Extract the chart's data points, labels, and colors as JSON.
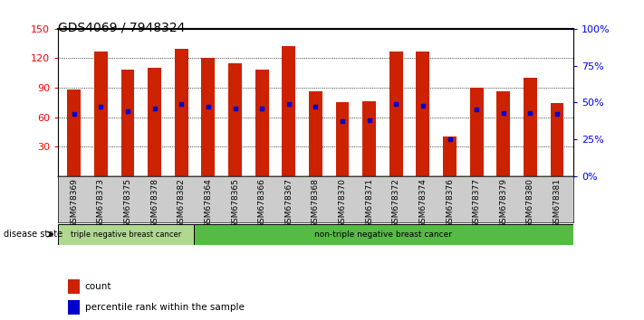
{
  "title": "GDS4069 / 7948324",
  "samples": [
    "GSM678369",
    "GSM678373",
    "GSM678375",
    "GSM678378",
    "GSM678382",
    "GSM678364",
    "GSM678365",
    "GSM678366",
    "GSM678367",
    "GSM678368",
    "GSM678370",
    "GSM678371",
    "GSM678372",
    "GSM678374",
    "GSM678376",
    "GSM678377",
    "GSM678379",
    "GSM678380",
    "GSM678381"
  ],
  "counts": [
    88,
    127,
    108,
    110,
    130,
    120,
    115,
    108,
    132,
    86,
    75,
    76,
    127,
    127,
    40,
    90,
    86,
    100,
    74
  ],
  "percentiles": [
    42,
    47,
    44,
    46,
    49,
    47,
    46,
    46,
    49,
    47,
    37,
    38,
    49,
    48,
    25,
    45,
    43,
    43,
    42
  ],
  "group1_count": 5,
  "group1_label": "triple negative breast cancer",
  "group2_label": "non-triple negative breast cancer",
  "ylim_left": [
    0,
    150
  ],
  "ylim_right": [
    0,
    100
  ],
  "yticks_left": [
    30,
    60,
    90,
    120,
    150
  ],
  "yticks_right": [
    0,
    25,
    50,
    75,
    100
  ],
  "ytick_labels_right": [
    "0%",
    "25%",
    "50%",
    "75%",
    "100%"
  ],
  "bar_color": "#cc2200",
  "dot_color": "#0000cc",
  "background_color": "#ffffff",
  "legend_label_bar": "count",
  "legend_label_dot": "percentile rank within the sample",
  "disease_state_label": "disease state",
  "title_fontsize": 10,
  "tick_fontsize": 6.5,
  "bar_width": 0.5,
  "group1_color": "#b0d890",
  "group2_color": "#55bb44"
}
